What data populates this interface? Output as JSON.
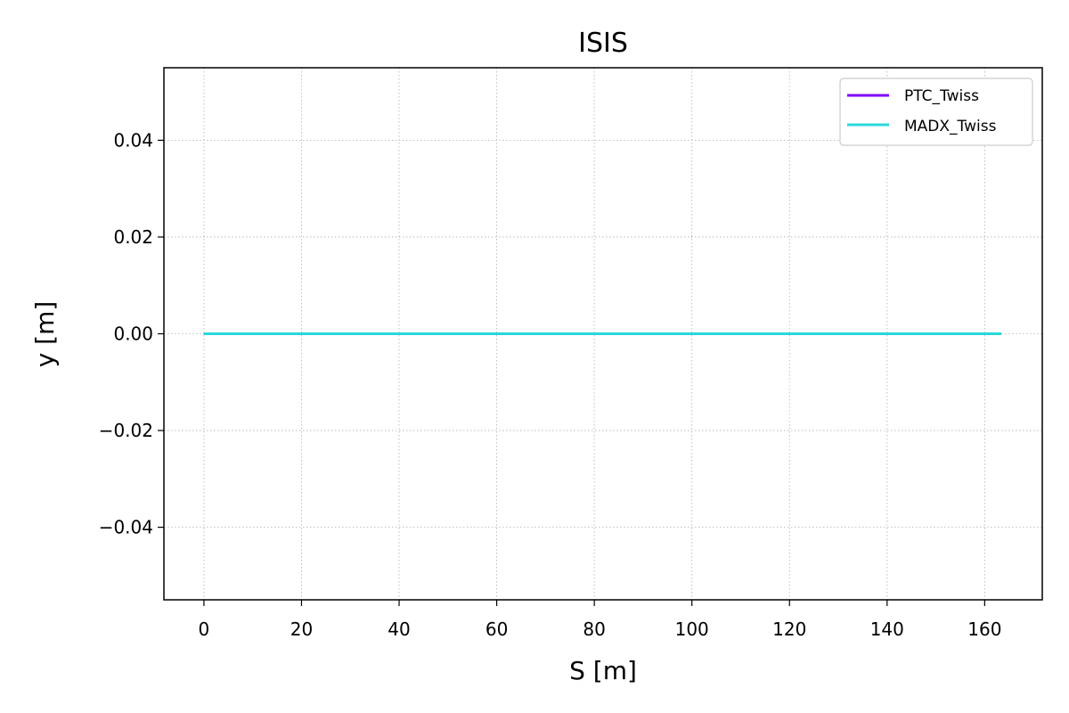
{
  "chart_data": {
    "type": "line",
    "title": "ISIS",
    "xlabel": "S [m]",
    "ylabel": "y [m]",
    "xlim": [
      -8.2,
      171.8
    ],
    "ylim": [
      -0.055,
      0.055
    ],
    "x_ticks": [
      0,
      20,
      40,
      60,
      80,
      100,
      120,
      140,
      160
    ],
    "x_tick_labels": [
      "0",
      "20",
      "40",
      "60",
      "80",
      "100",
      "120",
      "140",
      "160"
    ],
    "y_ticks": [
      0.04,
      0.02,
      0.0,
      -0.02,
      -0.04
    ],
    "y_tick_labels": [
      "0.04",
      "0.02",
      "0.00",
      "−0.02",
      "−0.04"
    ],
    "grid": true,
    "legend_position": "top-right",
    "series": [
      {
        "name": "PTC_Twiss",
        "color": "#8000ff",
        "x": [
          0,
          163.4
        ],
        "y": [
          0,
          0
        ]
      },
      {
        "name": "MADX_Twiss",
        "color": "#2ad8dc",
        "x": [
          0,
          163.4
        ],
        "y": [
          0,
          0
        ]
      }
    ]
  }
}
